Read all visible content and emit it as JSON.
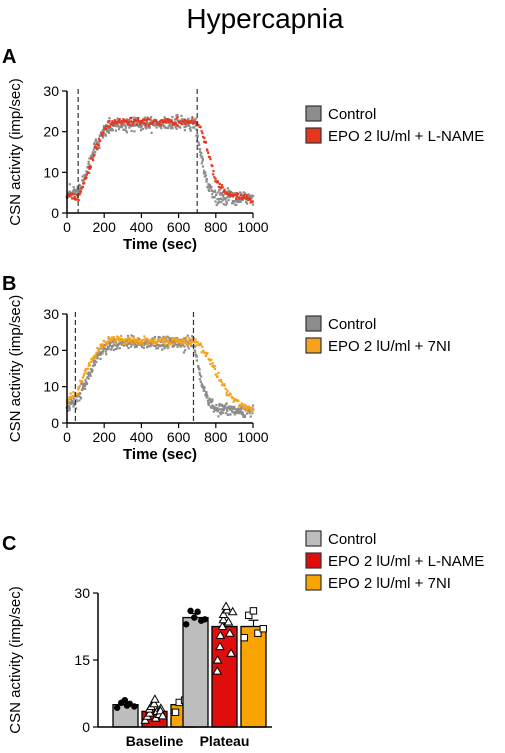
{
  "figure": {
    "title": "Hypercapnia",
    "panels": [
      "A",
      "B",
      "C"
    ]
  },
  "colors": {
    "control": "#8c8c8c",
    "control_bar": "#bdbdbd",
    "lname": "#e8361e",
    "lname_bar": "#e00d0d",
    "seveni": "#f7a21b",
    "seveni_bar": "#f9a400",
    "axis": "#000000"
  },
  "chart_data": [
    {
      "panel": "A",
      "type": "scatter",
      "xlabel": "Time (sec)",
      "ylabel": "CSN activity (imp/sec)",
      "xlim": [
        0,
        1000
      ],
      "ylim": [
        0,
        30
      ],
      "xticks": [
        0,
        200,
        400,
        600,
        800,
        1000
      ],
      "yticks": [
        0,
        10,
        20,
        30
      ],
      "vlines": [
        60,
        700
      ],
      "legend": "right",
      "series": [
        {
          "name": "Control",
          "profile": [
            [
              0,
              5
            ],
            [
              60,
              5.5
            ],
            [
              100,
              9
            ],
            [
              150,
              16
            ],
            [
              200,
              20
            ],
            [
              260,
              21.5
            ],
            [
              400,
              22
            ],
            [
              690,
              22
            ],
            [
              720,
              14
            ],
            [
              760,
              6
            ],
            [
              800,
              4
            ],
            [
              1000,
              3.5
            ]
          ],
          "spread": 1.8
        },
        {
          "name": "EPO 2 lU/ml + L-NAME",
          "profile": [
            [
              0,
              4
            ],
            [
              60,
              4
            ],
            [
              100,
              8
            ],
            [
              150,
              15
            ],
            [
              200,
              21
            ],
            [
              260,
              22.5
            ],
            [
              400,
              22.5
            ],
            [
              690,
              22.5
            ],
            [
              720,
              21
            ],
            [
              760,
              15
            ],
            [
              800,
              8
            ],
            [
              850,
              5
            ],
            [
              1000,
              3
            ]
          ],
          "spread": 0.9
        }
      ]
    },
    {
      "panel": "B",
      "type": "scatter",
      "xlabel": "Time (sec)",
      "ylabel": "CSN activity (imp/sec)",
      "xlim": [
        0,
        1000
      ],
      "ylim": [
        0,
        30
      ],
      "xticks": [
        0,
        200,
        400,
        600,
        800,
        1000
      ],
      "yticks": [
        0,
        10,
        20,
        30
      ],
      "vlines": [
        45,
        680
      ],
      "legend": "right",
      "series": [
        {
          "name": "Control",
          "profile": [
            [
              0,
              5
            ],
            [
              50,
              6
            ],
            [
              100,
              11
            ],
            [
              150,
              17
            ],
            [
              200,
              21
            ],
            [
              260,
              22
            ],
            [
              400,
              22
            ],
            [
              680,
              22
            ],
            [
              720,
              12
            ],
            [
              760,
              6
            ],
            [
              800,
              4
            ],
            [
              1000,
              3.5
            ]
          ],
          "spread": 1.8
        },
        {
          "name": "EPO 2 lU/ml + 7NI",
          "profile": [
            [
              0,
              6
            ],
            [
              45,
              8
            ],
            [
              100,
              14
            ],
            [
              150,
              19
            ],
            [
              200,
              22
            ],
            [
              260,
              23
            ],
            [
              400,
              22.5
            ],
            [
              690,
              22.5
            ],
            [
              740,
              20
            ],
            [
              800,
              14
            ],
            [
              880,
              7
            ],
            [
              940,
              5
            ],
            [
              1000,
              4
            ]
          ],
          "spread": 1.2
        }
      ]
    },
    {
      "panel": "C",
      "type": "bar",
      "ylabel": "CSN activity (imp/sec)",
      "categories": [
        "Baseline",
        "Plateau"
      ],
      "ylim": [
        0,
        30
      ],
      "yticks": [
        0,
        15,
        30
      ],
      "legend": "top-right",
      "series": [
        {
          "name": "Control",
          "values": [
            5,
            24.5
          ],
          "errors": [
            0.5,
            0.9
          ],
          "marker": "circle",
          "points": [
            [
              4.3,
              5.4,
              6.0,
              4.8,
              5.2,
              4.6
            ],
            [
              23.0,
              26.0,
              24.5,
              25.8,
              23.8,
              24.1
            ]
          ]
        },
        {
          "name": "EPO 2 lU/ml + L-NAME",
          "values": [
            3.5,
            22.5
          ],
          "errors": [
            0.4,
            1.3
          ],
          "marker": "triangle",
          "points": [
            [
              1.5,
              2.4,
              3.1,
              4.0,
              4.6,
              5.2,
              6.2,
              2.0,
              3.5,
              2.8,
              4.2,
              3.6,
              2.5
            ],
            [
              12.5,
              15.0,
              18.0,
              20.5,
              22.5,
              24.0,
              25.2,
              26.2,
              27.0,
              23.5,
              21.0,
              16.5,
              25.8
            ]
          ]
        },
        {
          "name": "EPO 2 lU/ml + 7NI",
          "values": [
            5,
            22.5
          ],
          "errors": [
            0.6,
            1.4
          ],
          "marker": "square",
          "points": [
            [
              3.3,
              5.5,
              6.0,
              4.5,
              5.3
            ],
            [
              20.0,
              25.0,
              26.0,
              21.0,
              22.0
            ]
          ]
        }
      ]
    }
  ]
}
